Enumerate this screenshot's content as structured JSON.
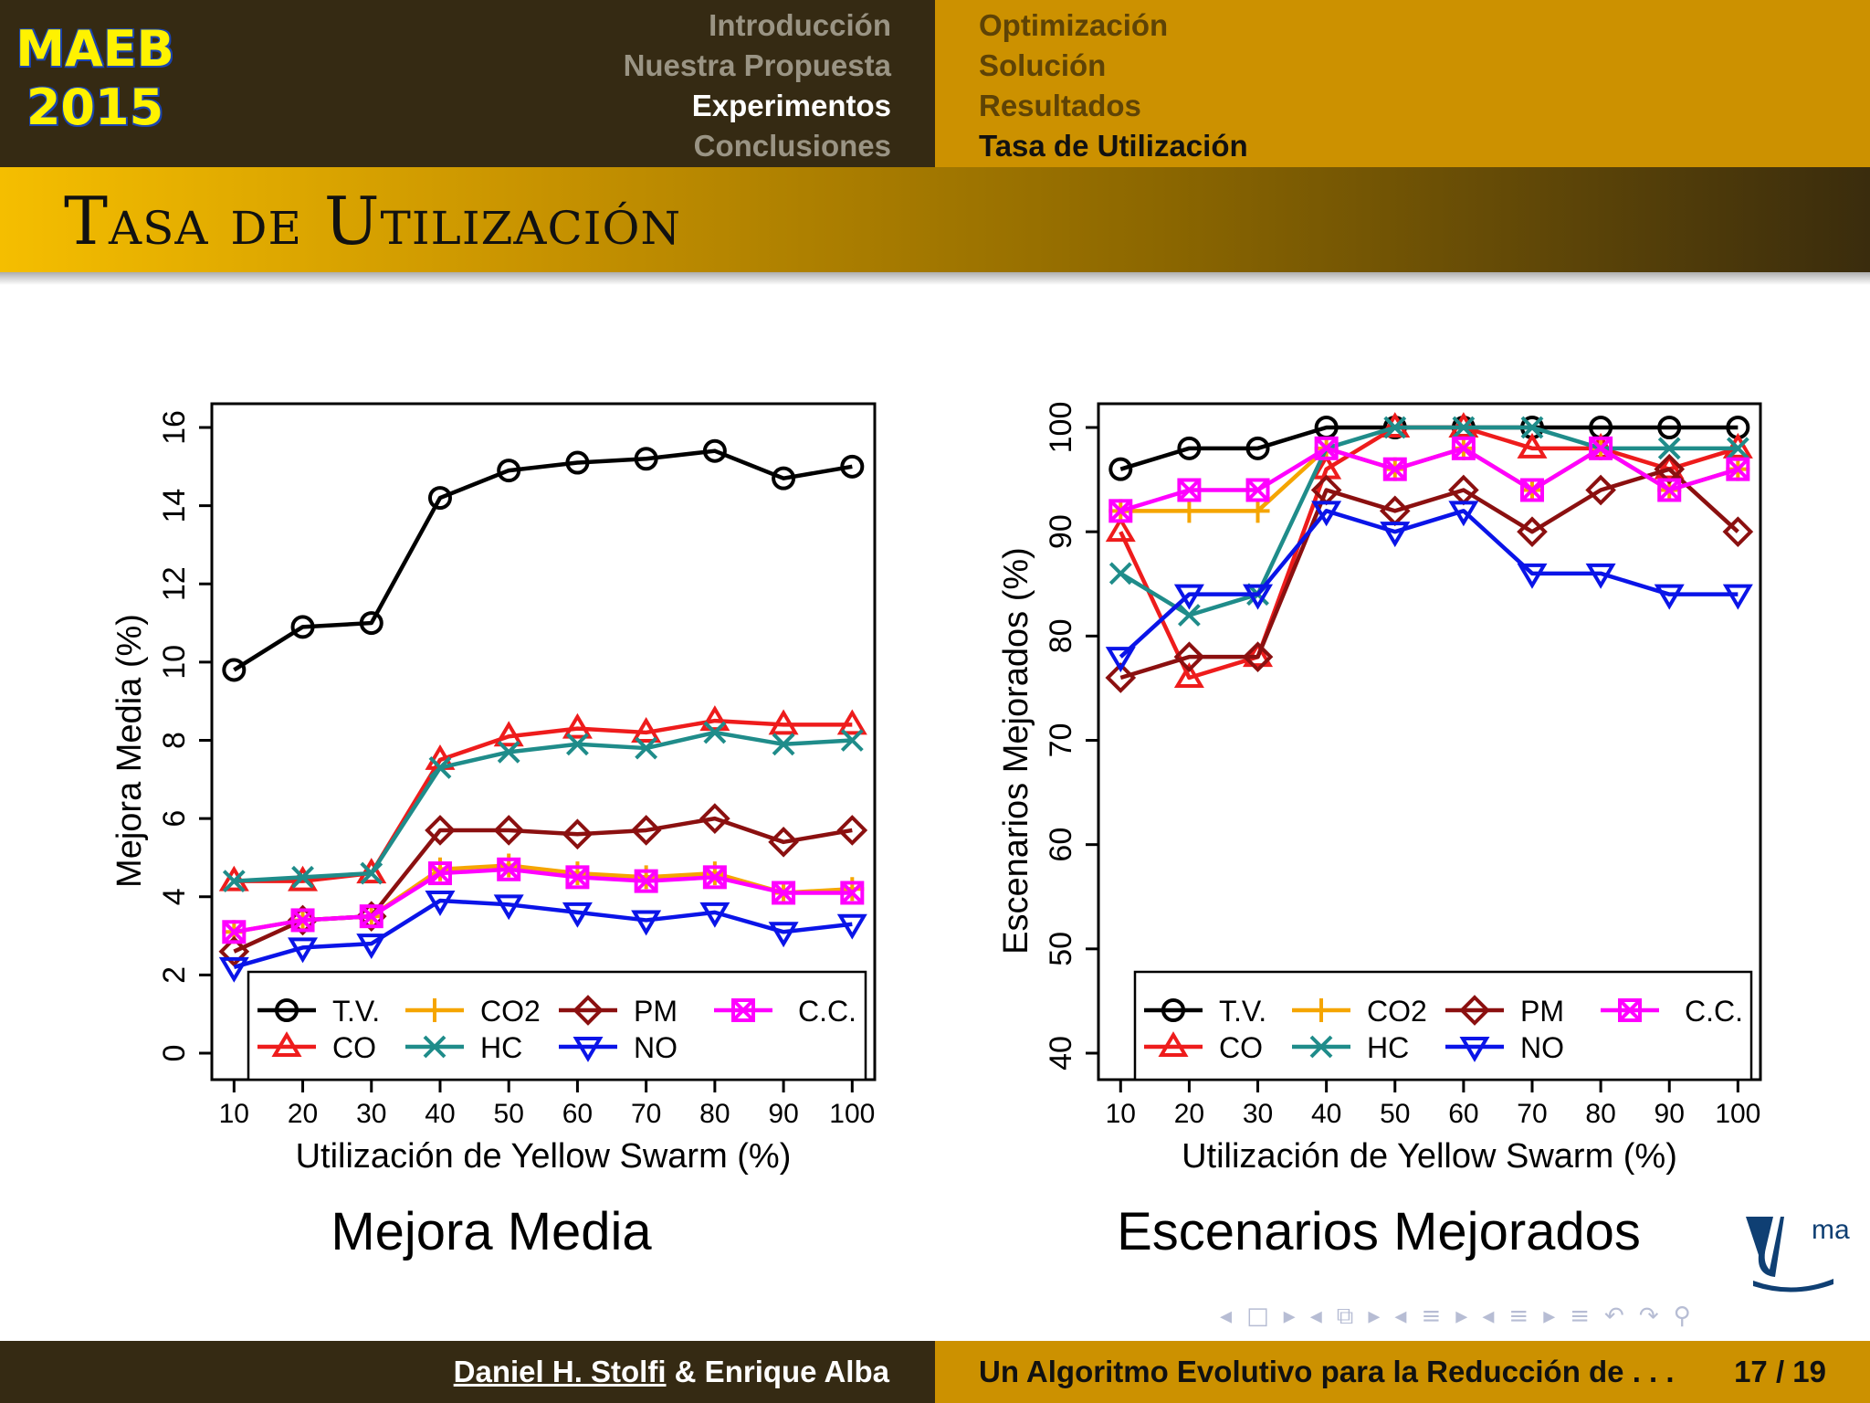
{
  "header": {
    "logo_line1": "MAEB",
    "logo_line2": "2015",
    "sections": [
      "Introducción",
      "Nuestra Propuesta",
      "Experimentos",
      "Conclusiones"
    ],
    "active_section": "Experimentos",
    "subsections": [
      "Optimización",
      "Solución",
      "Resultados",
      "Tasa de Utilización"
    ],
    "active_subsection": "Tasa de Utilización"
  },
  "frame_title": "Tasa de Utilización",
  "captions": {
    "left": "Mejora Media",
    "right": "Escenarios Mejorados"
  },
  "colors": {
    "T.V.": "#000000",
    "CO": "#ee1c1c",
    "CO2": "#f5a500",
    "HC": "#1f8c8a",
    "PM": "#8b1010",
    "NO": "#0a14e8",
    "C.C.": "#ff00ff",
    "header_dark": "#352a13",
    "header_gold": "#cc9100"
  },
  "markers": {
    "T.V.": "circle",
    "CO": "triangle-up",
    "CO2": "plus",
    "HC": "cross",
    "PM": "diamond",
    "NO": "triangle-down",
    "C.C.": "square-cross"
  },
  "chart_data": [
    {
      "type": "line",
      "xlabel": "Utilización de Yellow Swarm (%)",
      "ylabel": "Mejora Media (%)",
      "x": [
        10,
        20,
        30,
        40,
        50,
        60,
        70,
        80,
        90,
        100
      ],
      "ylim": [
        0,
        16
      ],
      "yticks": [
        0,
        2,
        4,
        6,
        8,
        10,
        12,
        14,
        16
      ],
      "legend": "bottom",
      "grid": false,
      "series": [
        {
          "name": "T.V.",
          "values": [
            9.8,
            10.9,
            11.0,
            14.2,
            14.9,
            15.1,
            15.2,
            15.4,
            14.7,
            15.0
          ]
        },
        {
          "name": "CO",
          "values": [
            4.4,
            4.4,
            4.6,
            7.5,
            8.1,
            8.3,
            8.2,
            8.5,
            8.4,
            8.4
          ]
        },
        {
          "name": "CO2",
          "values": [
            3.1,
            3.4,
            3.5,
            4.7,
            4.8,
            4.6,
            4.5,
            4.6,
            4.1,
            4.2
          ]
        },
        {
          "name": "HC",
          "values": [
            4.4,
            4.5,
            4.6,
            7.3,
            7.7,
            7.9,
            7.8,
            8.2,
            7.9,
            8.0
          ]
        },
        {
          "name": "PM",
          "values": [
            2.6,
            3.4,
            3.5,
            5.7,
            5.7,
            5.6,
            5.7,
            6.0,
            5.4,
            5.7
          ]
        },
        {
          "name": "NO",
          "values": [
            2.2,
            2.7,
            2.8,
            3.9,
            3.8,
            3.6,
            3.4,
            3.6,
            3.1,
            3.3
          ]
        },
        {
          "name": "C.C.",
          "values": [
            3.1,
            3.4,
            3.5,
            4.6,
            4.7,
            4.5,
            4.4,
            4.5,
            4.1,
            4.1
          ]
        }
      ]
    },
    {
      "type": "line",
      "xlabel": "Utilización de Yellow Swarm (%)",
      "ylabel": "Escenarios Mejorados (%)",
      "x": [
        10,
        20,
        30,
        40,
        50,
        60,
        70,
        80,
        90,
        100
      ],
      "ylim": [
        40,
        100
      ],
      "yticks": [
        40,
        50,
        60,
        70,
        80,
        90,
        100
      ],
      "legend": "bottom",
      "grid": false,
      "series": [
        {
          "name": "T.V.",
          "values": [
            96,
            98,
            98,
            100,
            100,
            100,
            100,
            100,
            100,
            100
          ]
        },
        {
          "name": "CO",
          "values": [
            90,
            76,
            78,
            96,
            100,
            100,
            98,
            98,
            96,
            98
          ]
        },
        {
          "name": "CO2",
          "values": [
            92,
            92,
            92,
            98,
            96,
            98,
            94,
            98,
            94,
            96
          ]
        },
        {
          "name": "HC",
          "values": [
            86,
            82,
            84,
            98,
            100,
            100,
            100,
            98,
            98,
            98
          ]
        },
        {
          "name": "PM",
          "values": [
            76,
            78,
            78,
            94,
            92,
            94,
            90,
            94,
            96,
            90
          ]
        },
        {
          "name": "NO",
          "values": [
            78,
            84,
            84,
            92,
            90,
            92,
            86,
            86,
            84,
            84
          ]
        },
        {
          "name": "C.C.",
          "values": [
            92,
            94,
            94,
            98,
            96,
            98,
            94,
            98,
            94,
            96
          ]
        }
      ]
    }
  ],
  "legend_order": [
    [
      "T.V.",
      "CO2",
      "PM",
      "C.C."
    ],
    [
      "CO",
      "HC",
      "NO"
    ]
  ],
  "nav_symbols": [
    "◂",
    "□",
    "▸",
    "◂",
    "⧉",
    "▸",
    "◂",
    "≡",
    "▸",
    "◂",
    "≡",
    "▸",
    "≡",
    "↶",
    "↷",
    "⚲"
  ],
  "uma_logo_text": "ma",
  "footer": {
    "authors_underlined": "Daniel H. Stolfi",
    "authors_rest": " & Enrique Alba",
    "talk_title": "Un Algoritmo Evolutivo para la Reducción de . . .",
    "page": "17 / 19"
  }
}
